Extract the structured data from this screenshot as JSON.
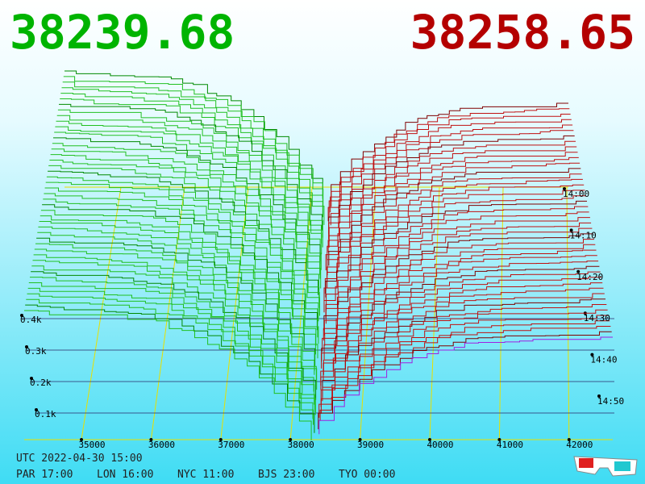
{
  "bid_price": "38239.68",
  "ask_price": "38258.65",
  "price_ticks": [
    "35000",
    "36000",
    "37000",
    "38000",
    "39000",
    "40000",
    "41000",
    "42000"
  ],
  "depth_ticks": [
    "0.4k",
    "0.3k",
    "0.2k",
    "0.1k"
  ],
  "time_ticks": [
    "14:00",
    "14:10",
    "14:20",
    "14:30",
    "14:40",
    "14:50"
  ],
  "utc": "UTC 2022-04-30 15:00",
  "clocks": [
    "PAR 17:00",
    "LON 16:00",
    "NYC 11:00",
    "BJS 23:00",
    "TYO 00:00"
  ]
}
